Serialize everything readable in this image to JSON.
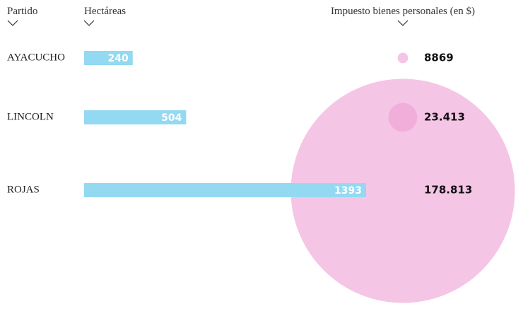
{
  "chart_data": {
    "type": "bar-bubble",
    "headers": [
      "Partido",
      "Hectáreas",
      "Impuesto bienes personales (en $)"
    ],
    "categories": [
      "AYACUCHO",
      "LINCOLN",
      "ROJAS"
    ],
    "series": [
      {
        "name": "Hectáreas",
        "color": "#93d9f2",
        "values": [
          240,
          504,
          1393
        ]
      },
      {
        "name": "Impuesto bienes personales (en $)",
        "color": "#ee9fd3",
        "values": [
          8869,
          23413,
          178813
        ],
        "value_labels": [
          "8869",
          "23.413",
          "178.813"
        ]
      }
    ]
  }
}
